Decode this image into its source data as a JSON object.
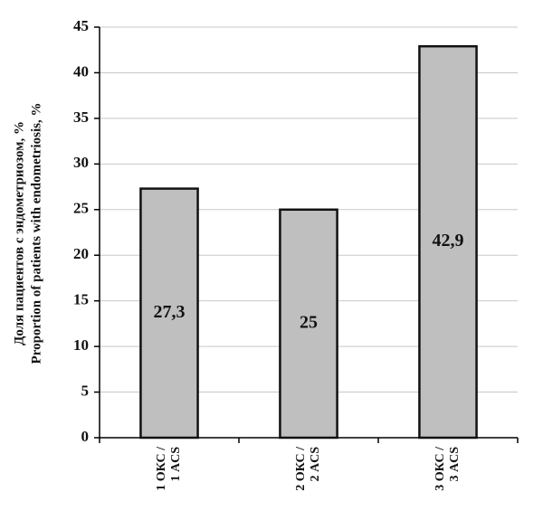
{
  "chart_data": {
    "type": "bar",
    "ylabel": [
      "Доля пациентов с эндометриозом, %",
      "Proportion of patients with endometriosis, %"
    ],
    "categories": [
      "1 ОКС /\n1 ACS",
      "2 ОКС /\n2 ACS",
      "3 ОКС /\n3 ACS"
    ],
    "values": [
      27.3,
      25,
      42.9
    ],
    "value_labels": [
      "27,3",
      "25",
      "42,9"
    ],
    "color": "#bfbfbf",
    "ylim": [
      0,
      45
    ],
    "yticks": [
      0,
      5,
      10,
      15,
      20,
      25,
      30,
      35,
      40,
      45
    ],
    "grid": true
  }
}
